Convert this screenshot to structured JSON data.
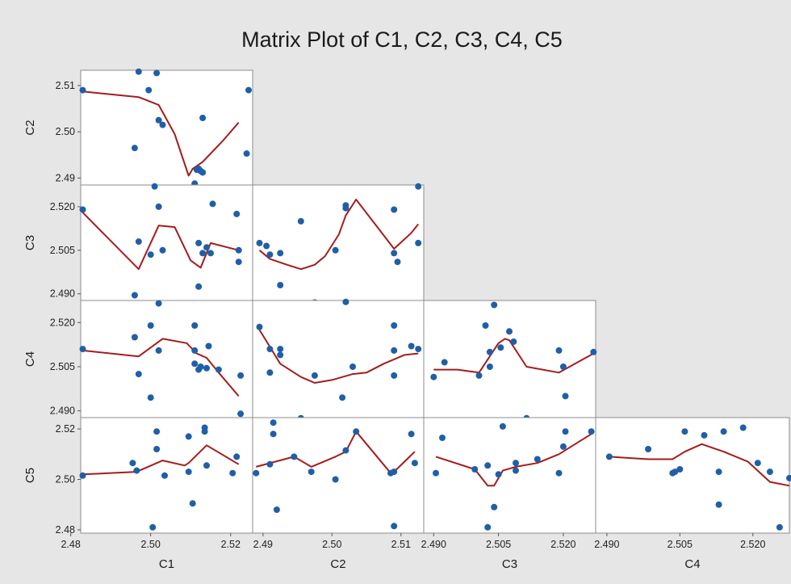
{
  "chart_data": {
    "type": "scatter",
    "title": "Matrix Plot of C1, C2, C3, C4, C5",
    "variables": [
      "C1",
      "C2",
      "C3",
      "C4",
      "C5"
    ],
    "axes": {
      "C1": {
        "range": [
          2.4825,
          2.5255
        ],
        "ticks": [
          2.48,
          2.5,
          2.52
        ],
        "tick_labels": [
          "2.48",
          "2.50",
          "2.52"
        ]
      },
      "C2": {
        "range": [
          2.4885,
          2.5133
        ],
        "ticks": [
          2.49,
          2.5,
          2.51
        ],
        "tick_labels": [
          "2.49",
          "2.50",
          "2.51"
        ]
      },
      "C3": {
        "range": [
          2.4877,
          2.5275
        ],
        "ticks": [
          2.49,
          2.505,
          2.52
        ],
        "tick_labels": [
          "2.490",
          "2.505",
          "2.520"
        ]
      },
      "C4": {
        "range": [
          2.4877,
          2.5275
        ],
        "ticks": [
          2.49,
          2.505,
          2.52
        ],
        "tick_labels": [
          "2.490",
          "2.505",
          "2.520"
        ]
      },
      "C5": {
        "range": [
          2.4787,
          2.5245
        ],
        "ticks": [
          2.48,
          2.5,
          2.52
        ],
        "tick_labels": [
          "2.48",
          "2.50",
          "2.52"
        ]
      }
    },
    "panels": [
      {
        "x": "C1",
        "y": "C2",
        "points": [
          [
            2.483,
            2.509
          ],
          [
            2.496,
            2.4965
          ],
          [
            2.497,
            2.513
          ],
          [
            2.4995,
            2.509
          ],
          [
            2.5015,
            2.5127
          ],
          [
            2.502,
            2.5025
          ],
          [
            2.503,
            2.5015
          ],
          [
            2.511,
            2.4888
          ],
          [
            2.5115,
            2.4918
          ],
          [
            2.512,
            2.492
          ],
          [
            2.5125,
            2.4915
          ],
          [
            2.513,
            2.503
          ],
          [
            2.513,
            2.4912
          ],
          [
            2.524,
            2.4953
          ],
          [
            2.5245,
            2.509
          ]
        ],
        "fit": [
          [
            2.483,
            2.5087
          ],
          [
            2.497,
            2.5075
          ],
          [
            2.502,
            2.5058
          ],
          [
            2.506,
            2.4995
          ],
          [
            2.5095,
            2.4905
          ],
          [
            2.5105,
            2.492
          ],
          [
            2.513,
            2.4935
          ],
          [
            2.518,
            2.498
          ],
          [
            2.522,
            2.502
          ]
        ]
      },
      {
        "x": "C1",
        "y": "C3",
        "points": [
          [
            2.483,
            2.519
          ],
          [
            2.496,
            2.4895
          ],
          [
            2.497,
            2.508
          ],
          [
            2.5,
            2.5035
          ],
          [
            2.501,
            2.527
          ],
          [
            2.502,
            2.52
          ],
          [
            2.503,
            2.505
          ],
          [
            2.512,
            2.5075
          ],
          [
            2.512,
            2.4925
          ],
          [
            2.513,
            2.504
          ],
          [
            2.514,
            2.506
          ],
          [
            2.515,
            2.504
          ],
          [
            2.5155,
            2.521
          ],
          [
            2.5215,
            2.5175
          ],
          [
            2.522,
            2.501
          ],
          [
            2.522,
            2.505
          ]
        ],
        "fit": [
          [
            2.483,
            2.518
          ],
          [
            2.497,
            2.4985
          ],
          [
            2.502,
            2.5135
          ],
          [
            2.506,
            2.513
          ],
          [
            2.51,
            2.5015
          ],
          [
            2.5125,
            2.499
          ],
          [
            2.515,
            2.5075
          ],
          [
            2.522,
            2.505
          ]
        ]
      },
      {
        "x": "C2",
        "y": "C3",
        "points": [
          [
            2.4895,
            2.5075
          ],
          [
            2.4905,
            2.5065
          ],
          [
            2.491,
            2.5035
          ],
          [
            2.4925,
            2.493
          ],
          [
            2.4925,
            2.504
          ],
          [
            2.4955,
            2.515
          ],
          [
            2.4975,
            2.487
          ],
          [
            2.5005,
            2.505
          ],
          [
            2.502,
            2.5195
          ],
          [
            2.502,
            2.5205
          ],
          [
            2.509,
            2.519
          ],
          [
            2.509,
            2.504
          ],
          [
            2.5095,
            2.501
          ],
          [
            2.5125,
            2.527
          ],
          [
            2.5125,
            2.5075
          ]
        ],
        "fit": [
          [
            2.4895,
            2.505
          ],
          [
            2.491,
            2.502
          ],
          [
            2.4935,
            2.5
          ],
          [
            2.4955,
            2.4985
          ],
          [
            2.4975,
            2.5
          ],
          [
            2.499,
            2.503
          ],
          [
            2.501,
            2.5105
          ],
          [
            2.502,
            2.517
          ],
          [
            2.5035,
            2.5225
          ],
          [
            2.509,
            2.5055
          ],
          [
            2.5115,
            2.511
          ],
          [
            2.5125,
            2.514
          ]
        ]
      },
      {
        "x": "C1",
        "y": "C4",
        "points": [
          [
            2.483,
            2.511
          ],
          [
            2.496,
            2.515
          ],
          [
            2.497,
            2.5025
          ],
          [
            2.5,
            2.4945
          ],
          [
            2.5,
            2.519
          ],
          [
            2.502,
            2.5265
          ],
          [
            2.502,
            2.5105
          ],
          [
            2.511,
            2.519
          ],
          [
            2.511,
            2.5105
          ],
          [
            2.511,
            2.506
          ],
          [
            2.512,
            2.504
          ],
          [
            2.5125,
            2.505
          ],
          [
            2.514,
            2.5045
          ],
          [
            2.5145,
            2.512
          ],
          [
            2.517,
            2.504
          ],
          [
            2.5225,
            2.502
          ],
          [
            2.5225,
            2.489
          ]
        ],
        "fit": [
          [
            2.483,
            2.5105
          ],
          [
            2.497,
            2.5085
          ],
          [
            2.503,
            2.5145
          ],
          [
            2.509,
            2.513
          ],
          [
            2.5115,
            2.5095
          ],
          [
            2.514,
            2.508
          ],
          [
            2.517,
            2.503
          ],
          [
            2.522,
            2.495
          ]
        ]
      },
      {
        "x": "C2",
        "y": "C4",
        "points": [
          [
            2.4895,
            2.5185
          ],
          [
            2.491,
            2.511
          ],
          [
            2.491,
            2.503
          ],
          [
            2.4925,
            2.509
          ],
          [
            2.4925,
            2.511
          ],
          [
            2.4955,
            2.4875
          ],
          [
            2.4975,
            2.502
          ],
          [
            2.5015,
            2.4945
          ],
          [
            2.502,
            2.527
          ],
          [
            2.503,
            2.505
          ],
          [
            2.509,
            2.519
          ],
          [
            2.509,
            2.5105
          ],
          [
            2.509,
            2.502
          ],
          [
            2.5115,
            2.512
          ],
          [
            2.5125,
            2.511
          ]
        ],
        "fit": [
          [
            2.4895,
            2.5175
          ],
          [
            2.4925,
            2.506
          ],
          [
            2.4955,
            2.5015
          ],
          [
            2.4975,
            2.4995
          ],
          [
            2.5,
            2.5005
          ],
          [
            2.503,
            2.5025
          ],
          [
            2.505,
            2.503
          ],
          [
            2.5075,
            2.506
          ],
          [
            2.5105,
            2.509
          ],
          [
            2.5125,
            2.5095
          ]
        ]
      },
      {
        "x": "C3",
        "y": "C4",
        "points": [
          [
            2.49,
            2.5015
          ],
          [
            2.4925,
            2.5065
          ],
          [
            2.5005,
            2.502
          ],
          [
            2.502,
            2.519
          ],
          [
            2.503,
            2.51
          ],
          [
            2.503,
            2.505
          ],
          [
            2.504,
            2.526
          ],
          [
            2.5055,
            2.5115
          ],
          [
            2.5075,
            2.517
          ],
          [
            2.5085,
            2.5135
          ],
          [
            2.5115,
            2.4875
          ],
          [
            2.519,
            2.5105
          ],
          [
            2.52,
            2.505
          ],
          [
            2.5205,
            2.495
          ],
          [
            2.527,
            2.51
          ]
        ],
        "fit": [
          [
            2.49,
            2.504
          ],
          [
            2.4955,
            2.504
          ],
          [
            2.5005,
            2.503
          ],
          [
            2.505,
            2.513
          ],
          [
            2.5065,
            2.5145
          ],
          [
            2.5075,
            2.514
          ],
          [
            2.5115,
            2.505
          ],
          [
            2.519,
            2.503
          ],
          [
            2.527,
            2.5095
          ]
        ]
      },
      {
        "x": "C1",
        "y": "C5",
        "points": [
          [
            2.483,
            2.5015
          ],
          [
            2.4955,
            2.5065
          ],
          [
            2.4965,
            2.5035
          ],
          [
            2.5005,
            2.481
          ],
          [
            2.5015,
            2.519
          ],
          [
            2.5015,
            2.512
          ],
          [
            2.5035,
            2.5015
          ],
          [
            2.5095,
            2.503
          ],
          [
            2.5095,
            2.517
          ],
          [
            2.5105,
            2.4905
          ],
          [
            2.5135,
            2.519
          ],
          [
            2.5135,
            2.5205
          ],
          [
            2.514,
            2.5055
          ],
          [
            2.5205,
            2.5025
          ],
          [
            2.5215,
            2.509
          ]
        ],
        "fit": [
          [
            2.483,
            2.502
          ],
          [
            2.4965,
            2.503
          ],
          [
            2.503,
            2.5075
          ],
          [
            2.5085,
            2.5055
          ],
          [
            2.5095,
            2.5065
          ],
          [
            2.514,
            2.5135
          ],
          [
            2.522,
            2.506
          ]
        ]
      },
      {
        "x": "C2",
        "y": "C5",
        "points": [
          [
            2.489,
            2.5025
          ],
          [
            2.491,
            2.506
          ],
          [
            2.4915,
            2.5225
          ],
          [
            2.4915,
            2.518
          ],
          [
            2.492,
            2.488
          ],
          [
            2.4945,
            2.509
          ],
          [
            2.497,
            2.503
          ],
          [
            2.5005,
            2.5
          ],
          [
            2.502,
            2.5115
          ],
          [
            2.5035,
            2.519
          ],
          [
            2.5085,
            2.5025
          ],
          [
            2.509,
            2.503
          ],
          [
            2.509,
            2.4815
          ],
          [
            2.5115,
            2.518
          ],
          [
            2.512,
            2.5065
          ]
        ],
        "fit": [
          [
            2.489,
            2.505
          ],
          [
            2.4945,
            2.509
          ],
          [
            2.497,
            2.505
          ],
          [
            2.5005,
            2.509
          ],
          [
            2.502,
            2.511
          ],
          [
            2.5035,
            2.519
          ],
          [
            2.5085,
            2.5025
          ],
          [
            2.509,
            2.503
          ],
          [
            2.512,
            2.511
          ]
        ]
      },
      {
        "x": "C3",
        "y": "C5",
        "points": [
          [
            2.4905,
            2.5025
          ],
          [
            2.492,
            2.5165
          ],
          [
            2.4995,
            2.504
          ],
          [
            2.5025,
            2.5055
          ],
          [
            2.5025,
            2.481
          ],
          [
            2.504,
            2.489
          ],
          [
            2.505,
            2.502
          ],
          [
            2.506,
            2.521
          ],
          [
            2.509,
            2.5035
          ],
          [
            2.509,
            2.5065
          ],
          [
            2.514,
            2.508
          ],
          [
            2.519,
            2.5025
          ],
          [
            2.52,
            2.513
          ],
          [
            2.5205,
            2.519
          ],
          [
            2.5265,
            2.519
          ]
        ],
        "fit": [
          [
            2.4905,
            2.509
          ],
          [
            2.4995,
            2.504
          ],
          [
            2.5025,
            2.4975
          ],
          [
            2.504,
            2.4975
          ],
          [
            2.506,
            2.5035
          ],
          [
            2.509,
            2.505
          ],
          [
            2.514,
            2.5065
          ],
          [
            2.519,
            2.51
          ],
          [
            2.5265,
            2.518
          ]
        ]
      },
      {
        "x": "C4",
        "y": "C5",
        "points": [
          [
            2.4905,
            2.509
          ],
          [
            2.4985,
            2.512
          ],
          [
            2.5035,
            2.5025
          ],
          [
            2.504,
            2.503
          ],
          [
            2.505,
            2.504
          ],
          [
            2.506,
            2.519
          ],
          [
            2.51,
            2.5175
          ],
          [
            2.513,
            2.49
          ],
          [
            2.513,
            2.503
          ],
          [
            2.514,
            2.519
          ],
          [
            2.518,
            2.5205
          ],
          [
            2.521,
            2.5065
          ],
          [
            2.5235,
            2.503
          ],
          [
            2.5255,
            2.481
          ],
          [
            2.5275,
            2.5005
          ]
        ],
        "fit": [
          [
            2.4905,
            2.509
          ],
          [
            2.4985,
            2.508
          ],
          [
            2.5035,
            2.508
          ],
          [
            2.506,
            2.511
          ],
          [
            2.5095,
            2.514
          ],
          [
            2.514,
            2.511
          ],
          [
            2.519,
            2.507
          ],
          [
            2.5235,
            2.499
          ],
          [
            2.5275,
            2.4975
          ]
        ]
      }
    ],
    "grid": false,
    "marker_color": "#1f5fa8",
    "fit_line_color": "#a51c1c",
    "background_color": "#e6e6e6",
    "panel_color": "#ffffff"
  }
}
